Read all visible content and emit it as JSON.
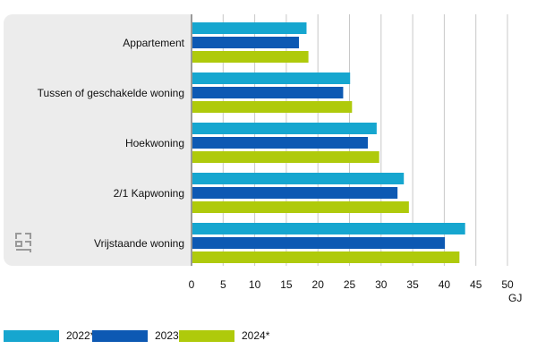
{
  "chart_data": {
    "type": "bar",
    "orientation": "horizontal",
    "categories": [
      "Appartement",
      "Tussen of geschakelde woning",
      "Hoekwoning",
      "2/1 Kapwoning",
      "Vrijstaande woning"
    ],
    "series": [
      {
        "name": "2022*",
        "color": "#16a6cf",
        "values": [
          18.2,
          25.1,
          29.3,
          33.6,
          43.3
        ]
      },
      {
        "name": "2023*",
        "color": "#0d59b3",
        "values": [
          17.0,
          24.0,
          27.9,
          32.6,
          40.1
        ]
      },
      {
        "name": "2024*",
        "color": "#afca0b",
        "values": [
          18.5,
          25.4,
          29.7,
          34.4,
          42.4
        ]
      }
    ],
    "xlim": [
      0,
      50
    ],
    "x_ticks": [
      "0",
      "5",
      "10",
      "15",
      "20",
      "25",
      "30",
      "35",
      "40",
      "45",
      "50"
    ],
    "xlabel": "GJ",
    "grid": "vertical",
    "legend_position": "bottom"
  },
  "logo_icon": "cbs-logo-icon"
}
